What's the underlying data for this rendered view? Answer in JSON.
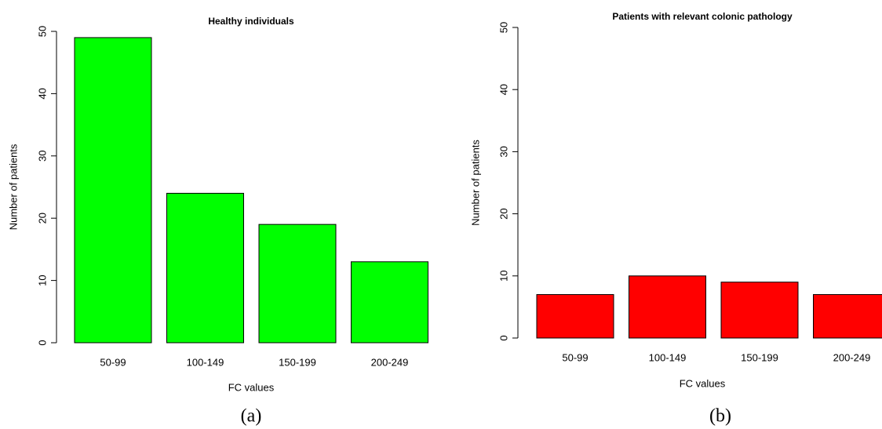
{
  "chart_data": [
    {
      "type": "bar",
      "title": "Healthy individuals",
      "x_label": "FC values",
      "y_label": "Number of patients",
      "caption": "(a)",
      "categories": [
        "50-99",
        "100-149",
        "150-199",
        "200-249"
      ],
      "values": [
        49,
        24,
        19,
        13
      ],
      "color": "#00ff00",
      "ylim": [
        0,
        50
      ],
      "yticks": [
        0,
        10,
        20,
        30,
        40,
        50
      ]
    },
    {
      "type": "bar",
      "title": "Patients with relevant colonic pathology",
      "x_label": "FC values",
      "y_label": "Number of patients",
      "caption": "(b)",
      "categories": [
        "50-99",
        "100-149",
        "150-199",
        "200-249"
      ],
      "values": [
        7,
        10,
        9,
        7
      ],
      "color": "#ff0000",
      "ylim": [
        0,
        50
      ],
      "yticks": [
        0,
        10,
        20,
        30,
        40,
        50
      ]
    }
  ]
}
